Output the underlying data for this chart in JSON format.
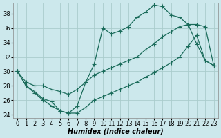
{
  "xlabel": "Humidex (Indice chaleur)",
  "background_color": "#cce8ec",
  "grid_color": "#aacccc",
  "line_color": "#1a6b5a",
  "xlim": [
    -0.5,
    23.5
  ],
  "ylim": [
    23.5,
    39.5
  ],
  "yticks": [
    24,
    26,
    28,
    30,
    32,
    34,
    36,
    38
  ],
  "xticks": [
    0,
    1,
    2,
    3,
    4,
    5,
    6,
    7,
    8,
    9,
    10,
    11,
    12,
    13,
    14,
    15,
    16,
    17,
    18,
    19,
    20,
    21,
    22,
    23
  ],
  "line1_x": [
    0,
    1,
    2,
    3,
    4,
    5,
    6,
    7,
    8,
    9,
    10,
    11,
    12,
    13,
    14,
    15,
    16,
    17,
    18,
    19,
    20,
    21,
    22,
    23
  ],
  "line1_y": [
    30.0,
    28.0,
    27.2,
    26.2,
    25.8,
    24.5,
    24.2,
    25.2,
    28.5,
    31.0,
    36.0,
    35.2,
    35.6,
    36.2,
    37.5,
    38.2,
    39.2,
    39.0,
    37.8,
    37.5,
    36.5,
    33.8,
    31.5,
    30.8
  ],
  "line2_x": [
    0,
    1,
    2,
    3,
    4,
    5,
    6,
    7,
    8,
    9,
    10,
    11,
    12,
    13,
    14,
    15,
    16,
    17,
    18,
    19,
    20,
    21,
    22,
    23
  ],
  "line2_y": [
    30.0,
    28.5,
    28.0,
    28.0,
    27.5,
    27.2,
    26.8,
    27.5,
    28.5,
    29.5,
    30.0,
    30.5,
    31.0,
    31.5,
    32.0,
    33.0,
    33.8,
    34.8,
    35.5,
    36.2,
    36.5,
    36.5,
    36.2,
    30.8
  ],
  "line3_x": [
    0,
    1,
    2,
    3,
    4,
    5,
    6,
    7,
    8,
    9,
    10,
    11,
    12,
    13,
    14,
    15,
    16,
    17,
    18,
    19,
    20,
    21,
    22,
    23
  ],
  "line3_y": [
    30.0,
    28.0,
    27.0,
    26.0,
    25.2,
    24.5,
    24.2,
    24.2,
    25.0,
    26.0,
    26.5,
    27.0,
    27.5,
    28.0,
    28.5,
    29.2,
    29.8,
    30.5,
    31.2,
    32.0,
    33.5,
    35.0,
    31.5,
    30.8
  ],
  "marker_size": 2.5,
  "line_width": 0.9,
  "xlabel_fontsize": 7,
  "tick_fontsize": 6
}
